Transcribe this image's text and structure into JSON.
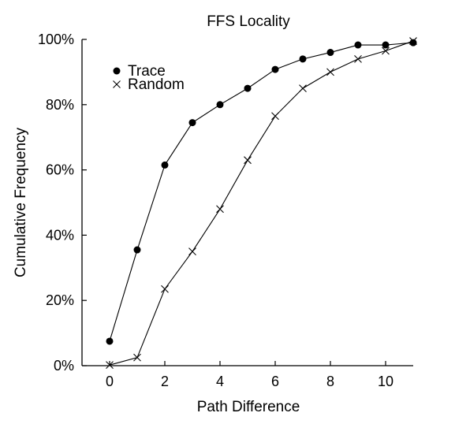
{
  "chart_data": {
    "type": "line",
    "title": "FFS Locality",
    "xlabel": "Path Difference",
    "ylabel": "Cumulative Frequency",
    "xlim": [
      -1,
      11
    ],
    "ylim": [
      0,
      100
    ],
    "x_ticks": [
      0,
      2,
      4,
      6,
      8,
      10
    ],
    "y_ticks": [
      0,
      20,
      40,
      60,
      80,
      100
    ],
    "y_tick_labels": [
      "0%",
      "20%",
      "40%",
      "60%",
      "80%",
      "100%"
    ],
    "grid": false,
    "legend_position": "top-left",
    "x": [
      0,
      1,
      2,
      3,
      4,
      5,
      6,
      7,
      8,
      9,
      10,
      11
    ],
    "series": [
      {
        "name": "Trace",
        "marker": "filled-circle",
        "color": "#000000",
        "values": [
          7.5,
          35.5,
          61.5,
          74.5,
          80.0,
          85.0,
          90.8,
          94.0,
          96.0,
          98.3,
          98.3,
          99.0
        ]
      },
      {
        "name": "Random",
        "marker": "cross",
        "color": "#000000",
        "values": [
          0.2,
          2.5,
          23.5,
          35.0,
          48.0,
          63.0,
          76.5,
          85.0,
          90.0,
          94.0,
          96.5,
          99.5
        ]
      }
    ]
  }
}
